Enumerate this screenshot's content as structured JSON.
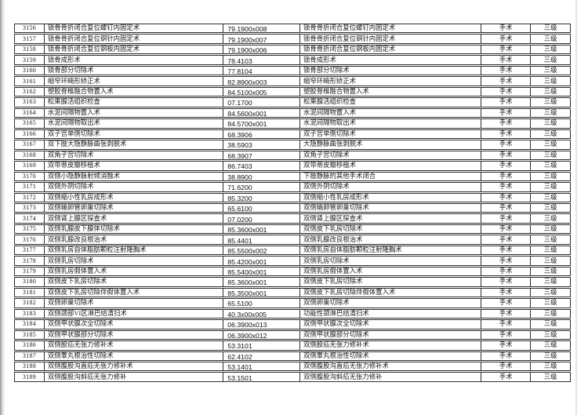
{
  "page": {
    "background": "#ffffff",
    "border_color": "#2e2e2e"
  },
  "table": {
    "rows": [
      {
        "no": "3156",
        "name": "锁骨骨折闭合复位螺钉内固定术",
        "code": "79.1900x008",
        "std_name": "锁骨骨折闭合复位螺钉内固定术",
        "category": "手术",
        "level": "三级"
      },
      {
        "no": "3157",
        "name": "锁骨骨折闭合复位钢针内固定术",
        "code": "79.1900x007",
        "std_name": "锁骨骨折闭合复位钢针内固定术",
        "category": "手术",
        "level": "三级"
      },
      {
        "no": "3158",
        "name": "锁骨骨折闭合复位钢板内固定术",
        "code": "79.1900x006",
        "std_name": "锁骨骨折闭合复位钢板内固定术",
        "category": "手术",
        "level": "三级"
      },
      {
        "no": "3159",
        "name": "锁骨成形术",
        "code": "78.4103",
        "std_name": "锁骨成形术",
        "category": "手术",
        "level": "三级"
      },
      {
        "no": "3160",
        "name": "锁骨部分切除术",
        "code": "77.8104",
        "std_name": "锁骨部分切除术",
        "category": "手术",
        "level": "三级"
      },
      {
        "no": "3161",
        "name": "缩窄环畸形矫正术",
        "code": "82.8900x003",
        "std_name": "缩窄环畸形矫正术",
        "category": "手术",
        "level": "三级"
      },
      {
        "no": "3162",
        "name": "塑胶脊椎融合物置入术",
        "code": "84.5100x005",
        "std_name": "塑胶脊椎融合物置入术",
        "category": "手术",
        "level": "三级"
      },
      {
        "no": "3163",
        "name": "松果腺活组织检查",
        "code": "07.1700",
        "std_name": "松果腺活组织检查",
        "category": "手术",
        "level": "三级"
      },
      {
        "no": "3164",
        "name": "水泥间隔物置入术",
        "code": "84.5600x001",
        "std_name": "水泥间隔物置入术",
        "category": "手术",
        "level": "三级"
      },
      {
        "no": "3165",
        "name": "水泥间隔物取出术",
        "code": "84.5700x001",
        "std_name": "水泥间隔物取出术",
        "category": "手术",
        "level": "三级"
      },
      {
        "no": "3166",
        "name": "双子宫单侧切除术",
        "code": "68.3906",
        "std_name": "双子宫单侧切除术",
        "category": "手术",
        "level": "三级"
      },
      {
        "no": "3167",
        "name": "双下肢大隐静脉曲张剥脱术",
        "code": "38.5903",
        "std_name": "大隐静脉曲张剥脱术",
        "category": "手术",
        "level": "三级"
      },
      {
        "no": "3168",
        "name": "双角子宫切除术",
        "code": "68.3907",
        "std_name": "双角子宫切除术",
        "category": "手术",
        "level": "三级"
      },
      {
        "no": "3169",
        "name": "双带蒂皮瓣移植术",
        "code": "86.7403",
        "std_name": "双带蒂皮瓣移植术",
        "category": "手术",
        "level": "三级"
      },
      {
        "no": "3170",
        "name": "双侧小隐静脉射频消融术",
        "code": "38.8900",
        "std_name": "下肢静脉的其他手术闭合",
        "category": "手术",
        "level": "三级"
      },
      {
        "no": "3171",
        "name": "双侧外阴切除术",
        "code": "71.6200",
        "std_name": "双侧外阴切除术",
        "category": "手术",
        "level": "三级"
      },
      {
        "no": "3172",
        "name": "双侧缩小性乳房成形术",
        "code": "85.3200",
        "std_name": "双侧缩小性乳房成形术",
        "category": "手术",
        "level": "三级"
      },
      {
        "no": "3173",
        "name": "双侧输卵管卵巢切除术",
        "code": "65.6100",
        "std_name": "双侧输卵管卵巢切除术",
        "category": "手术",
        "level": "三级"
      },
      {
        "no": "3174",
        "name": "双侧肾上腺区探查术",
        "code": "07.0200",
        "std_name": "双侧肾上腺区探查术",
        "category": "手术",
        "level": "三级"
      },
      {
        "no": "3175",
        "name": "双侧乳腺皮下腺体切除术",
        "code": "85.3600x001",
        "std_name": "双侧皮下乳房切除术",
        "category": "手术",
        "level": "三级"
      },
      {
        "no": "3176",
        "name": "双侧乳腺改良根治术",
        "code": "85.4401",
        "std_name": "双侧乳腺改良根治术",
        "category": "手术",
        "level": "三级"
      },
      {
        "no": "3177",
        "name": "双侧乳房自体脂肪颗粒注射隆胸术",
        "code": "85.5500x002",
        "std_name": "双侧乳房自体脂肪颗粒注射隆胸术",
        "category": "手术",
        "level": "三级"
      },
      {
        "no": "3178",
        "name": "双侧乳房切除术",
        "code": "85.4200x001",
        "std_name": "双侧乳房切除术",
        "category": "手术",
        "level": "三级"
      },
      {
        "no": "3179",
        "name": "双侧乳房假体置入术",
        "code": "85.5400x001",
        "std_name": "双侧乳房假体置入术",
        "category": "手术",
        "level": "三级"
      },
      {
        "no": "3180",
        "name": "双侧皮下乳房切除术",
        "code": "85.3600x001",
        "std_name": "双侧皮下乳房切除术",
        "category": "手术",
        "level": "三级"
      },
      {
        "no": "3181",
        "name": "双侧皮下乳房切除伴假体置入术",
        "code": "85.3500x001",
        "std_name": "双侧皮下乳房切除伴假体置入术",
        "category": "手术",
        "level": "三级"
      },
      {
        "no": "3182",
        "name": "双侧卵巢切除术",
        "code": "65.5100",
        "std_name": "双侧卵巢切除术",
        "category": "手术",
        "level": "三级"
      },
      {
        "no": "3183",
        "name": "双侧颈部VI区淋巴结清扫术",
        "code": "40.3x00x005",
        "std_name": "功能性颈淋巴结清扫术",
        "category": "手术",
        "level": "三级"
      },
      {
        "no": "3184",
        "name": "双侧甲状腺次全切除术",
        "code": "06.3900x013",
        "std_name": "双侧甲状腺次全切除术",
        "category": "手术",
        "level": "三级"
      },
      {
        "no": "3185",
        "name": "双侧甲状腺部分切除术",
        "code": "06.3900x012",
        "std_name": "双侧甲状腺部分切除术",
        "category": "手术",
        "level": "三级"
      },
      {
        "no": "3186",
        "name": "双侧股疝无张力修补术",
        "code": "53.3101",
        "std_name": "双侧股疝无张力修补术",
        "category": "手术",
        "level": "三级"
      },
      {
        "no": "3187",
        "name": "双侧睾丸根治性切除术",
        "code": "62.4102",
        "std_name": "双侧睾丸根治性切除术",
        "category": "手术",
        "level": "三级"
      },
      {
        "no": "3188",
        "name": "双侧腹股沟直疝无张力修补术",
        "code": "53.1401",
        "std_name": "双侧腹股沟直疝无张力修补术",
        "category": "手术",
        "level": "三级"
      },
      {
        "no": "3189",
        "name": "双侧腹股沟斜疝无张力修补",
        "code": "53.1501",
        "std_name": "双侧腹股沟斜疝无张力修补",
        "category": "手术",
        "level": "三级"
      }
    ]
  }
}
